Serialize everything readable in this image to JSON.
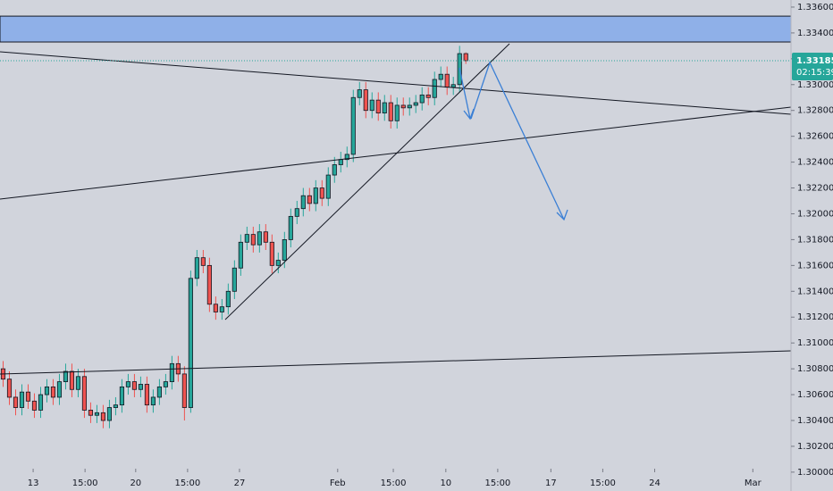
{
  "chart_data": {
    "type": "candlestick",
    "open": [
      1.308,
      1.3072,
      1.3058,
      1.305,
      1.3062,
      1.3055,
      1.3048,
      1.306,
      1.3066,
      1.3058,
      1.307,
      1.3078,
      1.3064,
      1.3074,
      1.3048,
      1.3044,
      1.3046,
      1.304,
      1.305,
      1.3052,
      1.3066,
      1.307,
      1.3064,
      1.3068,
      1.3052,
      1.3058,
      1.3066,
      1.307,
      1.3084,
      1.3076,
      1.305,
      1.315,
      1.3166,
      1.316,
      1.313,
      1.3124,
      1.3128,
      1.314,
      1.3158,
      1.3178,
      1.3184,
      1.3176,
      1.3186,
      1.3178,
      1.316,
      1.3164,
      1.318,
      1.3198,
      1.3204,
      1.3214,
      1.3208,
      1.322,
      1.3212,
      1.323,
      1.3238,
      1.3242,
      1.3246,
      1.329,
      1.3296,
      1.328,
      1.3288,
      1.3278,
      1.3286,
      1.3272,
      1.3284,
      1.3282,
      1.3284,
      1.3286,
      1.3292,
      1.329,
      1.3304,
      1.3308,
      1.3298,
      1.33,
      1.3324
    ],
    "high": [
      1.3086,
      1.3078,
      1.3064,
      1.3068,
      1.3068,
      1.3061,
      1.3066,
      1.3072,
      1.3072,
      1.3076,
      1.3084,
      1.3084,
      1.308,
      1.308,
      1.3054,
      1.3052,
      1.3052,
      1.3056,
      1.3058,
      1.3072,
      1.3076,
      1.3076,
      1.3074,
      1.3074,
      1.3064,
      1.3072,
      1.3076,
      1.309,
      1.309,
      1.3082,
      1.3156,
      1.3172,
      1.3172,
      1.3166,
      1.3136,
      1.3134,
      1.3146,
      1.3164,
      1.3184,
      1.319,
      1.319,
      1.3192,
      1.3192,
      1.3184,
      1.317,
      1.3186,
      1.3204,
      1.321,
      1.322,
      1.322,
      1.3226,
      1.3226,
      1.3236,
      1.3244,
      1.3248,
      1.3252,
      1.3296,
      1.3302,
      1.3302,
      1.3294,
      1.3294,
      1.3292,
      1.3292,
      1.329,
      1.329,
      1.329,
      1.3292,
      1.3298,
      1.3298,
      1.331,
      1.3314,
      1.3314,
      1.3306,
      1.333,
      1.3325
    ],
    "low": [
      1.3066,
      1.3052,
      1.3044,
      1.3044,
      1.3049,
      1.3042,
      1.3042,
      1.3054,
      1.3052,
      1.3052,
      1.3064,
      1.3058,
      1.3058,
      1.3042,
      1.3038,
      1.3038,
      1.3034,
      1.3034,
      1.3044,
      1.3046,
      1.306,
      1.3058,
      1.3058,
      1.3046,
      1.3046,
      1.3052,
      1.306,
      1.3064,
      1.307,
      1.304,
      1.3046,
      1.3144,
      1.3154,
      1.3124,
      1.3118,
      1.3118,
      1.3122,
      1.3134,
      1.3152,
      1.3172,
      1.317,
      1.317,
      1.3172,
      1.3154,
      1.3154,
      1.3158,
      1.3174,
      1.3192,
      1.3198,
      1.3202,
      1.3202,
      1.3206,
      1.3206,
      1.3224,
      1.3232,
      1.3236,
      1.324,
      1.3284,
      1.3274,
      1.3274,
      1.3272,
      1.3272,
      1.3266,
      1.3266,
      1.3276,
      1.3276,
      1.3278,
      1.328,
      1.3284,
      1.3284,
      1.3298,
      1.3292,
      1.3292,
      1.3294,
      1.3316
    ],
    "close": [
      1.3072,
      1.3058,
      1.305,
      1.3062,
      1.3055,
      1.3048,
      1.306,
      1.3066,
      1.3058,
      1.307,
      1.3078,
      1.3064,
      1.3074,
      1.3048,
      1.3044,
      1.3046,
      1.304,
      1.305,
      1.3052,
      1.3066,
      1.307,
      1.3064,
      1.3068,
      1.3052,
      1.3058,
      1.3066,
      1.307,
      1.3084,
      1.3076,
      1.305,
      1.315,
      1.3166,
      1.316,
      1.313,
      1.3124,
      1.3128,
      1.314,
      1.3158,
      1.3178,
      1.3184,
      1.3176,
      1.3186,
      1.3178,
      1.316,
      1.3164,
      1.318,
      1.3198,
      1.3204,
      1.3214,
      1.3208,
      1.322,
      1.3212,
      1.323,
      1.3238,
      1.3242,
      1.3246,
      1.329,
      1.3296,
      1.328,
      1.3288,
      1.3278,
      1.3286,
      1.3272,
      1.3284,
      1.3282,
      1.3284,
      1.3286,
      1.3292,
      1.329,
      1.3304,
      1.3308,
      1.3298,
      1.33,
      1.3324,
      1.33185
    ],
    "up_color": "#26a69a",
    "down_color": "#ef5350",
    "xlim": [
      -0.5,
      126
    ],
    "xticks": [
      {
        "value": 4.8,
        "label": "13"
      },
      {
        "value": 13.1,
        "label": "15:00"
      },
      {
        "value": 21.2,
        "label": "20"
      },
      {
        "value": 29.5,
        "label": "15:00"
      },
      {
        "value": 37.8,
        "label": "27"
      },
      {
        "value": 53.5,
        "label": "Feb"
      },
      {
        "value": 62.4,
        "label": "15:00"
      },
      {
        "value": 70.8,
        "label": "10"
      },
      {
        "value": 79.1,
        "label": "15:00"
      },
      {
        "value": 87.6,
        "label": "17"
      },
      {
        "value": 95.9,
        "label": "15:00"
      },
      {
        "value": 104.2,
        "label": "24"
      },
      {
        "value": 119.9,
        "label": "Mar"
      }
    ],
    "ylim": [
      1.29854,
      1.33655
    ],
    "yticks": [
      {
        "value": 1.3,
        "label": "1.30000"
      },
      {
        "value": 1.302,
        "label": "1.30200"
      },
      {
        "value": 1.304,
        "label": "1.30400"
      },
      {
        "value": 1.306,
        "label": "1.30600"
      },
      {
        "value": 1.308,
        "label": "1.30800"
      },
      {
        "value": 1.31,
        "label": "1.31000"
      },
      {
        "value": 1.312,
        "label": "1.31200"
      },
      {
        "value": 1.314,
        "label": "1.31400"
      },
      {
        "value": 1.316,
        "label": "1.31600"
      },
      {
        "value": 1.318,
        "label": "1.31800"
      },
      {
        "value": 1.32,
        "label": "1.32000"
      },
      {
        "value": 1.322,
        "label": "1.32200"
      },
      {
        "value": 1.324,
        "label": "1.32400"
      },
      {
        "value": 1.326,
        "label": "1.32600"
      },
      {
        "value": 1.328,
        "label": "1.32800"
      },
      {
        "value": 1.33,
        "label": "1.33000"
      },
      {
        "value": 1.332,
        "label": "1.33200"
      },
      {
        "value": 1.334,
        "label": "1.33400"
      },
      {
        "value": 1.336,
        "label": "1.33600"
      }
    ],
    "zone": [
      1.3333,
      1.3353
    ],
    "last_price": 1.33185,
    "countdown": "02:15:39"
  }
}
